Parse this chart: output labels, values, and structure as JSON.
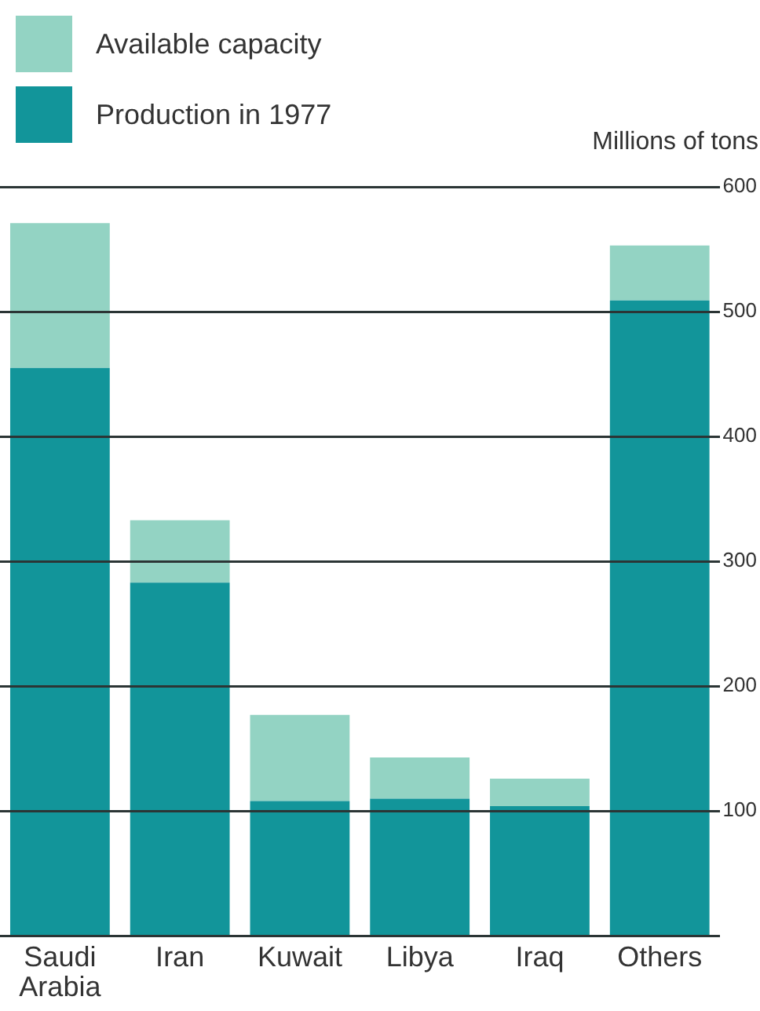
{
  "chart_data": {
    "type": "bar",
    "stacked": true,
    "categories": [
      "Saudi Arabia",
      "Iran",
      "Kuwait",
      "Libya",
      "Iraq",
      "Others"
    ],
    "series": [
      {
        "name": "Production in 1977",
        "color": "#12959a",
        "values": [
          455,
          283,
          108,
          110,
          104,
          509
        ]
      },
      {
        "name": "Available capacity",
        "color": "#93d3c3",
        "values": [
          116,
          50,
          69,
          33,
          22,
          44
        ]
      }
    ],
    "ylabel": "Millions of tons",
    "ylim": [
      0,
      600
    ],
    "yticks": [
      {
        "value": 0,
        "label": null
      },
      100,
      200,
      300,
      400,
      500,
      600
    ],
    "grid": "y",
    "legend": "top left"
  }
}
